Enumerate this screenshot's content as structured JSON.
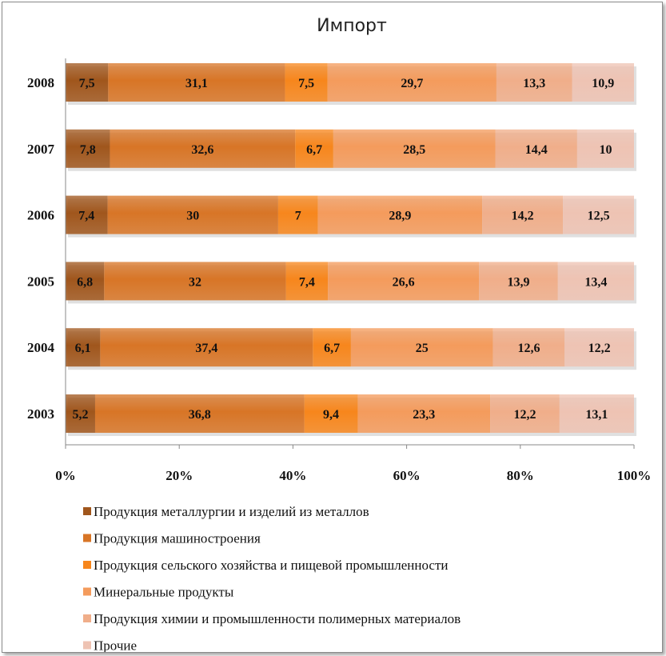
{
  "chart_data": {
    "type": "bar",
    "orientation": "horizontal",
    "stacking": "percent",
    "title": "Импорт",
    "categories": [
      "2008",
      "2007",
      "2006",
      "2005",
      "2004",
      "2003"
    ],
    "x_ticks": [
      "0%",
      "20%",
      "40%",
      "60%",
      "80%",
      "100%"
    ],
    "xlim": [
      0,
      100
    ],
    "grid": false,
    "legend_position": "bottom",
    "series": [
      {
        "name": "Продукция металлургии и изделий из металлов",
        "color": "#a0561c",
        "values": [
          7.5,
          7.8,
          7.4,
          6.8,
          6.1,
          5.2
        ],
        "labels": [
          "7,5",
          "7,8",
          "7,4",
          "6,8",
          "6,1",
          "5,2"
        ]
      },
      {
        "name": "Продукция машиностроения",
        "color": "#d87526",
        "values": [
          31.1,
          32.6,
          30,
          32,
          37.4,
          36.8
        ],
        "labels": [
          "31,1",
          "32,6",
          "30",
          "32",
          "37,4",
          "36,8"
        ]
      },
      {
        "name": "Продукция сельского хозяйства и пищевой промышленности",
        "color": "#f7861c",
        "values": [
          7.5,
          6.7,
          7,
          7.4,
          6.7,
          9.4
        ],
        "labels": [
          "7,5",
          "6,7",
          "7",
          "7,4",
          "6,7",
          "9,4"
        ]
      },
      {
        "name": "Минеральные продукты",
        "color": "#f49b5c",
        "values": [
          29.7,
          28.5,
          28.9,
          26.6,
          25,
          23.3
        ],
        "labels": [
          "29,7",
          "28,5",
          "28,9",
          "26,6",
          "25",
          "23,3"
        ]
      },
      {
        "name": "Продукция химии и промышленности полимерных материалов",
        "color": "#f0ae8a",
        "values": [
          13.3,
          14.4,
          14.2,
          13.9,
          12.6,
          12.2
        ],
        "labels": [
          "13,3",
          "14,4",
          "14,2",
          "13,9",
          "12,6",
          "12,2"
        ]
      },
      {
        "name": "Прочие",
        "color": "#eec3b3",
        "values": [
          10.9,
          10,
          12.5,
          13.4,
          12.2,
          13.1
        ],
        "labels": [
          "10,9",
          "10",
          "12,5",
          "13,4",
          "12,2",
          "13,1"
        ]
      }
    ]
  }
}
